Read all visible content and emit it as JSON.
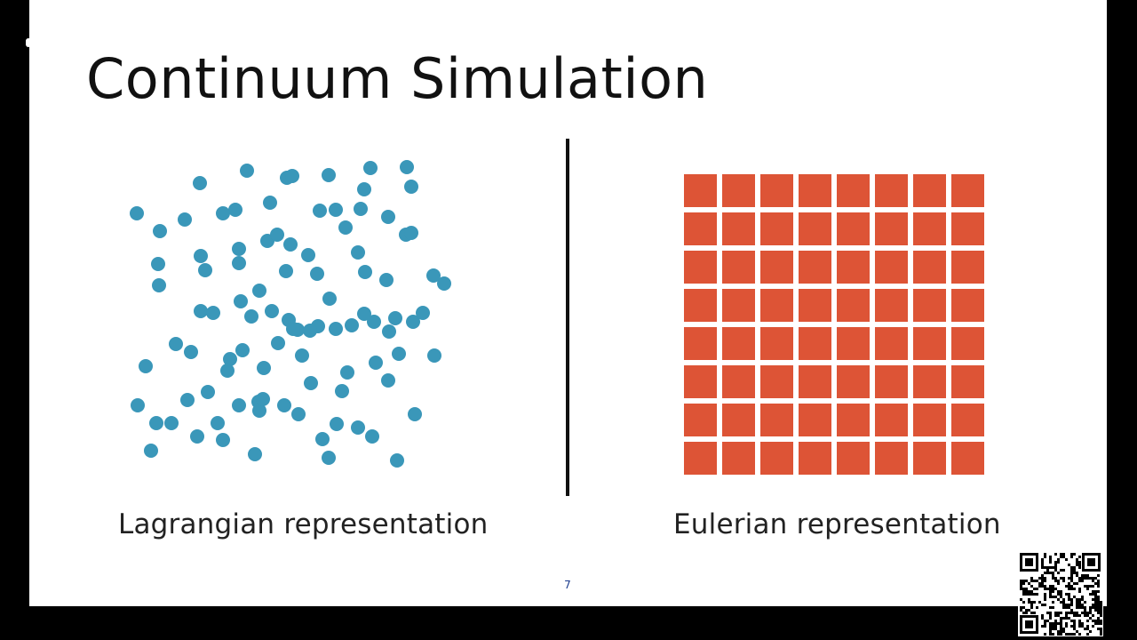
{
  "slide": {
    "title": "Continuum Simulation",
    "page_number": "7",
    "left_caption": "Lagrangian representation",
    "right_caption": "Eulerian representation"
  },
  "colors": {
    "particle": "#3a97b9",
    "grid_cell": "#dd5436",
    "divider": "#111111",
    "page_background": "#000000",
    "slide_background": "#ffffff"
  },
  "icons": {
    "qr": "qr-code-icon"
  }
}
